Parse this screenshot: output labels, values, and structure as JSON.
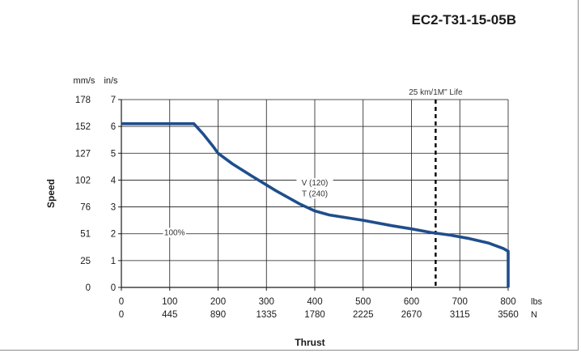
{
  "chart_data": {
    "type": "line",
    "title": "EC2-T31-15-05B",
    "xlabel": "Thrust",
    "ylabel": "Speed",
    "x_units": {
      "primary": "lbs",
      "secondary": "N"
    },
    "y_units": {
      "primary": "in/s",
      "secondary": "mm/s"
    },
    "xlim": [
      0,
      800
    ],
    "ylim": [
      0,
      7
    ],
    "x_ticks": [
      0,
      100,
      200,
      300,
      400,
      500,
      600,
      700,
      800
    ],
    "x_tick_labels_primary": [
      "0",
      "100",
      "200",
      "300",
      "400",
      "500",
      "600",
      "700",
      "800"
    ],
    "x_tick_labels_secondary": [
      "0",
      "445",
      "890",
      "1335",
      "1780",
      "2225",
      "2670",
      "3115",
      "3560"
    ],
    "y_ticks": [
      0,
      1,
      2,
      3,
      4,
      5,
      6,
      7
    ],
    "y_tick_labels_primary": [
      "0",
      "1",
      "2",
      "3",
      "4",
      "5",
      "6",
      "7"
    ],
    "y_tick_labels_secondary": [
      "0",
      "25",
      "51",
      "76",
      "102",
      "127",
      "152",
      "178"
    ],
    "grid": true,
    "series": [
      {
        "color": "#1f4e8c",
        "x": [
          0,
          150,
          170,
          190,
          200,
          230,
          270,
          320,
          370,
          400,
          430,
          500,
          560,
          600,
          640,
          680,
          720,
          760,
          790,
          800,
          800
        ],
        "y": [
          6.1,
          6.1,
          5.7,
          5.25,
          5.0,
          4.6,
          4.15,
          3.6,
          3.1,
          2.85,
          2.7,
          2.5,
          2.3,
          2.18,
          2.05,
          1.95,
          1.82,
          1.65,
          1.45,
          1.35,
          0
        ]
      }
    ],
    "reference_lines": [
      {
        "x": 650,
        "label": "25 km/1M\" Life"
      }
    ],
    "annotations": [
      {
        "text": "V (120)",
        "x": 400,
        "y": 3.8
      },
      {
        "text": "T (240)",
        "x": 400,
        "y": 3.4
      },
      {
        "text": "100%",
        "x": 110,
        "y": 1.95
      }
    ]
  }
}
